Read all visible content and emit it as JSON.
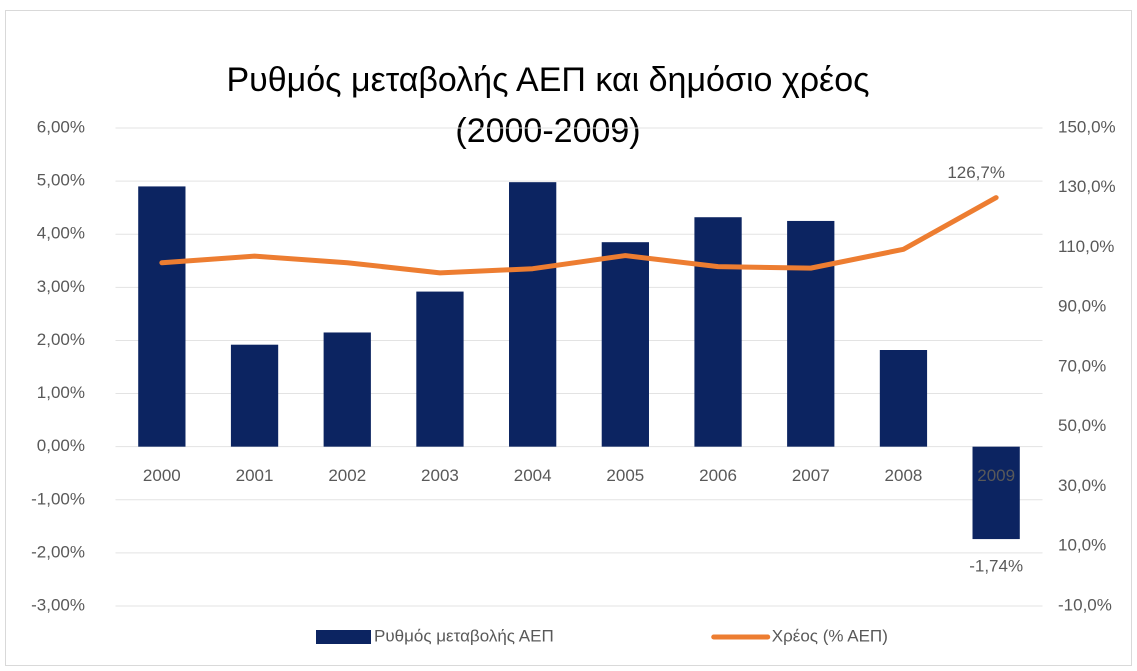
{
  "chart_data": {
    "type": "bar_line",
    "title_lines": [
      "Ρυθμός μεταβολής ΑΕΠ και δημόσιο χρέος",
      "(2000-2009)"
    ],
    "categories": [
      "2000",
      "2001",
      "2002",
      "2003",
      "2004",
      "2005",
      "2006",
      "2007",
      "2008",
      "2009"
    ],
    "series": [
      {
        "name": "Ρυθμός μεταβολής ΑΕΠ",
        "type": "bar",
        "color": "#0c2461",
        "values": [
          4.9,
          1.92,
          2.15,
          2.92,
          4.98,
          3.85,
          4.32,
          4.25,
          1.82,
          -1.74
        ],
        "value_labels": [
          null,
          null,
          null,
          null,
          null,
          null,
          null,
          null,
          null,
          "-1,74%"
        ]
      },
      {
        "name": "Χρέος (% ΑΕΠ)",
        "type": "line",
        "axis": "y2",
        "color": "#ed7d31",
        "values": [
          104.9,
          107.1,
          104.9,
          101.5,
          102.9,
          107.3,
          103.6,
          103.1,
          109.4,
          126.7
        ],
        "value_labels": [
          null,
          null,
          null,
          null,
          null,
          null,
          null,
          null,
          null,
          "126,7%"
        ]
      }
    ],
    "ylim": [
      -3,
      6
    ],
    "yticks": [
      {
        "value": -3,
        "label": "-3,00%"
      },
      {
        "value": -2,
        "label": "-2,00%"
      },
      {
        "value": -1,
        "label": "-1,00%"
      },
      {
        "value": 0,
        "label": "0,00%"
      },
      {
        "value": 1,
        "label": "1,00%"
      },
      {
        "value": 2,
        "label": "2,00%"
      },
      {
        "value": 3,
        "label": "3,00%"
      },
      {
        "value": 4,
        "label": "4,00%"
      },
      {
        "value": 5,
        "label": "5,00%"
      },
      {
        "value": 6,
        "label": "6,00%"
      }
    ],
    "y2lim": [
      -10,
      150
    ],
    "y2ticks": [
      {
        "value": -10,
        "label": "-10,0%"
      },
      {
        "value": 10,
        "label": "10,0%"
      },
      {
        "value": 30,
        "label": "30,0%"
      },
      {
        "value": 50,
        "label": "50,0%"
      },
      {
        "value": 70,
        "label": "70,0%"
      },
      {
        "value": 90,
        "label": "90,0%"
      },
      {
        "value": 110,
        "label": "110,0%"
      },
      {
        "value": 130,
        "label": "130,0%"
      },
      {
        "value": 150,
        "label": "150,0%"
      }
    ],
    "grid": true,
    "legend": "bottom"
  }
}
